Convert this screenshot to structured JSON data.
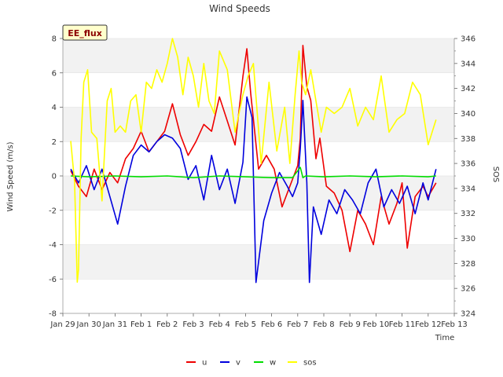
{
  "chart_data": {
    "type": "line",
    "title": "Wind Speeds",
    "xlabel": "Time",
    "ylabel": "Wind Speed (m/s)",
    "y2label": "SOS",
    "badge": "EE_flux",
    "ylim": [
      -8,
      8
    ],
    "y2lim": [
      324,
      346
    ],
    "xlim": [
      0,
      15
    ],
    "x_ticks": [
      {
        "x": 0,
        "label": "Jan 29"
      },
      {
        "x": 1,
        "label": "Jan 30"
      },
      {
        "x": 2,
        "label": "Jan 31"
      },
      {
        "x": 3,
        "label": "Feb 1"
      },
      {
        "x": 4,
        "label": "Feb 2"
      },
      {
        "x": 5,
        "label": "Feb 3"
      },
      {
        "x": 6,
        "label": "Feb 4"
      },
      {
        "x": 7,
        "label": "Feb 5"
      },
      {
        "x": 8,
        "label": "Feb 6"
      },
      {
        "x": 9,
        "label": "Feb 7"
      },
      {
        "x": 10,
        "label": "Feb 8"
      },
      {
        "x": 11,
        "label": "Feb 9"
      },
      {
        "x": 12,
        "label": "Feb 10"
      },
      {
        "x": 13,
        "label": "Feb 11"
      },
      {
        "x": 14,
        "label": "Feb 12"
      },
      {
        "x": 15,
        "label": "Feb 13"
      }
    ],
    "y_ticks": [
      -8,
      -6,
      -4,
      -2,
      0,
      2,
      4,
      6,
      8
    ],
    "y2_ticks": [
      324,
      326,
      328,
      330,
      332,
      334,
      336,
      338,
      340,
      342,
      344,
      346
    ],
    "series": [
      {
        "name": "u",
        "axis": "left",
        "color": "#ee0000",
        "x": [
          0.3,
          0.6,
          0.9,
          1.2,
          1.5,
          1.8,
          2.1,
          2.4,
          2.7,
          3.0,
          3.3,
          3.6,
          3.9,
          4.2,
          4.5,
          4.8,
          5.1,
          5.4,
          5.7,
          6.0,
          6.3,
          6.6,
          6.9,
          7.05,
          7.2,
          7.5,
          7.8,
          8.1,
          8.4,
          8.7,
          9.0,
          9.1,
          9.2,
          9.35,
          9.5,
          9.7,
          9.85,
          10.1,
          10.4,
          10.7,
          11.0,
          11.3,
          11.6,
          11.9,
          12.2,
          12.5,
          12.8,
          13.0,
          13.2,
          13.5,
          13.8,
          14.0,
          14.3
        ],
        "values": [
          0.3,
          -0.6,
          -1.2,
          0.4,
          -0.8,
          0.2,
          -0.4,
          1.0,
          1.6,
          2.6,
          1.4,
          2.0,
          2.6,
          4.2,
          2.4,
          1.2,
          2.0,
          3.0,
          2.6,
          4.6,
          3.2,
          1.8,
          5.8,
          7.4,
          4.8,
          0.4,
          1.2,
          0.4,
          -1.8,
          -0.6,
          0.6,
          2.2,
          7.6,
          5.2,
          4.4,
          1.0,
          2.2,
          -0.6,
          -1.0,
          -2.0,
          -4.4,
          -2.0,
          -2.8,
          -4.0,
          -1.2,
          -2.8,
          -1.6,
          -0.4,
          -4.2,
          -1.2,
          -0.6,
          -1.2,
          -0.4
        ]
      },
      {
        "name": "v",
        "axis": "left",
        "color": "#0000dd",
        "x": [
          0.3,
          0.6,
          0.9,
          1.2,
          1.5,
          1.8,
          2.1,
          2.4,
          2.7,
          3.0,
          3.3,
          3.6,
          3.9,
          4.2,
          4.5,
          4.8,
          5.1,
          5.4,
          5.7,
          6.0,
          6.3,
          6.6,
          6.9,
          7.05,
          7.25,
          7.4,
          7.7,
          8.0,
          8.3,
          8.6,
          8.8,
          9.0,
          9.1,
          9.2,
          9.35,
          9.45,
          9.6,
          9.9,
          10.2,
          10.5,
          10.8,
          11.1,
          11.4,
          11.7,
          12.0,
          12.3,
          12.6,
          12.9,
          13.2,
          13.5,
          13.8,
          14.0,
          14.3
        ],
        "values": [
          0.4,
          -0.4,
          0.6,
          -0.8,
          0.4,
          -1.2,
          -2.8,
          -0.6,
          1.2,
          1.8,
          1.4,
          2.0,
          2.4,
          2.2,
          1.6,
          -0.2,
          0.6,
          -1.4,
          1.2,
          -0.8,
          0.4,
          -1.6,
          0.8,
          4.6,
          3.4,
          -6.2,
          -2.6,
          -1.0,
          0.2,
          -0.6,
          -1.2,
          -0.4,
          1.6,
          4.4,
          -0.4,
          -6.2,
          -1.8,
          -3.4,
          -1.4,
          -2.2,
          -0.8,
          -1.4,
          -2.2,
          -0.4,
          0.4,
          -1.8,
          -0.8,
          -1.6,
          -0.6,
          -2.2,
          -0.4,
          -1.4,
          0.4
        ]
      },
      {
        "name": "w",
        "axis": "left",
        "color": "#00dd00",
        "x": [
          0.3,
          1.0,
          2.0,
          3.0,
          4.0,
          5.0,
          6.0,
          7.0,
          8.0,
          8.8,
          9.1,
          9.2,
          9.3,
          10.0,
          11.0,
          12.0,
          13.0,
          14.0,
          14.3
        ],
        "values": [
          0.0,
          -0.05,
          0.0,
          -0.05,
          0.0,
          -0.1,
          0.0,
          -0.05,
          -0.1,
          -0.1,
          0.5,
          -0.1,
          0.0,
          -0.05,
          0.0,
          -0.05,
          0.0,
          -0.05,
          0.0
        ]
      },
      {
        "name": "sos",
        "axis": "right",
        "color": "#ffff00",
        "x": [
          0.3,
          0.45,
          0.55,
          0.6,
          0.7,
          0.8,
          0.95,
          1.1,
          1.3,
          1.5,
          1.7,
          1.85,
          2.0,
          2.2,
          2.4,
          2.6,
          2.8,
          3.0,
          3.2,
          3.4,
          3.6,
          3.8,
          4.0,
          4.2,
          4.4,
          4.6,
          4.8,
          5.0,
          5.2,
          5.4,
          5.6,
          5.8,
          6.0,
          6.3,
          6.6,
          6.9,
          7.1,
          7.3,
          7.6,
          7.9,
          8.2,
          8.5,
          8.7,
          8.9,
          9.05,
          9.15,
          9.3,
          9.5,
          9.7,
          9.9,
          10.1,
          10.4,
          10.7,
          11.0,
          11.3,
          11.6,
          11.9,
          12.2,
          12.5,
          12.8,
          13.1,
          13.4,
          13.7,
          14.0,
          14.3
        ],
        "values": [
          337.8,
          334.5,
          326.5,
          327.5,
          338.0,
          342.5,
          343.5,
          338.5,
          338.0,
          333.0,
          341.0,
          342.0,
          338.5,
          339.0,
          338.5,
          341.0,
          341.5,
          338.5,
          342.5,
          342.0,
          343.5,
          342.5,
          344.0,
          346.0,
          344.5,
          341.5,
          344.5,
          343.0,
          340.5,
          344.0,
          341.0,
          340.0,
          345.0,
          343.5,
          338.5,
          341.5,
          343.0,
          344.0,
          336.0,
          342.5,
          337.0,
          340.5,
          336.0,
          341.5,
          345.0,
          342.5,
          341.5,
          343.5,
          341.0,
          338.5,
          340.5,
          340.0,
          340.5,
          342.0,
          339.0,
          340.5,
          339.5,
          343.0,
          338.5,
          339.5,
          340.0,
          342.5,
          341.5,
          337.5,
          339.5
        ]
      }
    ],
    "legend": [
      "u",
      "v",
      "w",
      "sos"
    ],
    "legend_position": "bottom-center",
    "grid": "horizontal bands"
  }
}
